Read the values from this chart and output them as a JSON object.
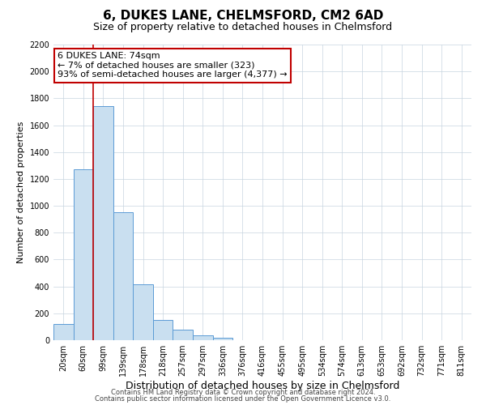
{
  "title": "6, DUKES LANE, CHELMSFORD, CM2 6AD",
  "subtitle": "Size of property relative to detached houses in Chelmsford",
  "xlabel": "Distribution of detached houses by size in Chelmsford",
  "ylabel": "Number of detached properties",
  "bar_labels": [
    "20sqm",
    "60sqm",
    "99sqm",
    "139sqm",
    "178sqm",
    "218sqm",
    "257sqm",
    "297sqm",
    "336sqm",
    "376sqm",
    "416sqm",
    "455sqm",
    "495sqm",
    "534sqm",
    "574sqm",
    "613sqm",
    "653sqm",
    "692sqm",
    "732sqm",
    "771sqm",
    "811sqm"
  ],
  "bar_values": [
    120,
    1270,
    1740,
    950,
    415,
    150,
    80,
    35,
    20,
    0,
    0,
    0,
    0,
    0,
    0,
    0,
    0,
    0,
    0,
    0,
    0
  ],
  "bar_color": "#c9dff0",
  "bar_edge_color": "#5b9bd5",
  "vline_x_idx": 1.5,
  "vline_color": "#c00000",
  "annotation_text": "6 DUKES LANE: 74sqm\n← 7% of detached houses are smaller (323)\n93% of semi-detached houses are larger (4,377) →",
  "annotation_box_facecolor": "#ffffff",
  "annotation_box_edgecolor": "#c00000",
  "ylim": [
    0,
    2200
  ],
  "yticks": [
    0,
    200,
    400,
    600,
    800,
    1000,
    1200,
    1400,
    1600,
    1800,
    2000,
    2200
  ],
  "footer_line1": "Contains HM Land Registry data © Crown copyright and database right 2024.",
  "footer_line2": "Contains public sector information licensed under the Open Government Licence v3.0.",
  "bg_color": "#ffffff",
  "grid_color": "#c8d4e0",
  "title_fontsize": 11,
  "subtitle_fontsize": 9,
  "xlabel_fontsize": 9,
  "ylabel_fontsize": 8,
  "tick_fontsize": 7,
  "annotation_fontsize": 8,
  "footer_fontsize": 6
}
